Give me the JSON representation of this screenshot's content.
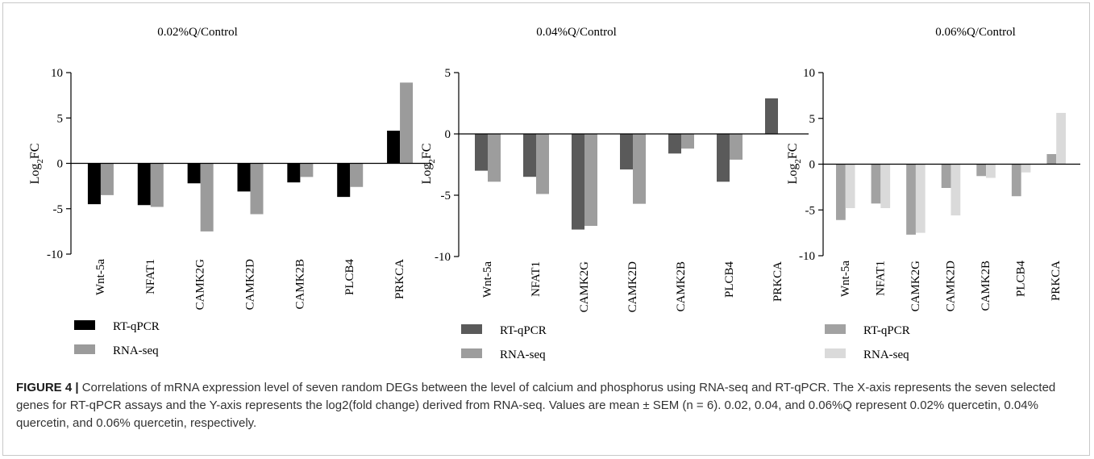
{
  "chart_data": [
    {
      "type": "bar",
      "title": "0.02%Q/Control",
      "ylabel": "Log2FC",
      "ylim": [
        -10,
        10
      ],
      "yticks": [
        -10,
        -5,
        0,
        5,
        10
      ],
      "categories": [
        "Wnt-5a",
        "NFAT1",
        "CAMK2G",
        "CAMK2D",
        "CAMK2B",
        "PLCB4",
        "PRKCA"
      ],
      "series": [
        {
          "name": "RT-qPCR",
          "color": "#000000",
          "values": [
            -4.5,
            -4.6,
            -2.2,
            -3.1,
            -2.1,
            -3.7,
            3.6
          ]
        },
        {
          "name": "RNA-seq",
          "color": "#9b9b9b",
          "values": [
            -3.5,
            -4.8,
            -7.5,
            -5.6,
            -1.5,
            -2.6,
            8.9
          ]
        }
      ],
      "legend_position": "bottom-left"
    },
    {
      "type": "bar",
      "title": "0.04%Q/Control",
      "ylabel": "Log2FC",
      "ylim": [
        -10,
        5
      ],
      "yticks": [
        -10,
        -5,
        0,
        5
      ],
      "categories": [
        "Wnt-5a",
        "NFAT1",
        "CAMK2G",
        "CAMK2D",
        "CAMK2B",
        "PLCB4",
        "PRKCA"
      ],
      "series": [
        {
          "name": "RT-qPCR",
          "color": "#5a5a5a",
          "values": [
            -3.0,
            -3.5,
            -7.8,
            -2.9,
            -1.6,
            -3.9,
            2.9
          ]
        },
        {
          "name": "RNA-seq",
          "color": "#9d9d9d",
          "values": [
            -3.9,
            -4.9,
            -7.5,
            -5.7,
            -1.2,
            -2.1,
            0
          ]
        }
      ],
      "legend_position": "bottom-left"
    },
    {
      "type": "bar",
      "title": "0.06%Q/Control",
      "ylabel": "Log2FC",
      "ylim": [
        -10,
        10
      ],
      "yticks": [
        -10,
        -5,
        0,
        5,
        10
      ],
      "categories": [
        "Wnt-5a",
        "NFAT1",
        "CAMK2G",
        "CAMK2D",
        "CAMK2B",
        "PLCB4",
        "PRKCA"
      ],
      "series": [
        {
          "name": "RT-qPCR",
          "color": "#a2a2a2",
          "values": [
            -6.1,
            -4.3,
            -7.7,
            -2.6,
            -1.3,
            -3.5,
            1.1
          ]
        },
        {
          "name": "RNA-seq",
          "color": "#dadada",
          "values": [
            -4.8,
            -4.8,
            -7.5,
            -5.6,
            -1.5,
            -0.9,
            5.6
          ]
        }
      ],
      "legend_position": "bottom-left"
    }
  ],
  "caption": {
    "lead": "FIGURE 4 |",
    "text": "Correlations of mRNA expression level of seven random DEGs between the level of calcium and phosphorus using RNA-seq and RT-qPCR. The X-axis represents the seven selected genes for RT-qPCR assays and the Y-axis represents the log2(fold change) derived from RNA-seq. Values are mean ± SEM (n = 6). 0.02, 0.04, and 0.06%Q represent 0.02% quercetin, 0.04% quercetin, and 0.06% quercetin, respectively."
  }
}
